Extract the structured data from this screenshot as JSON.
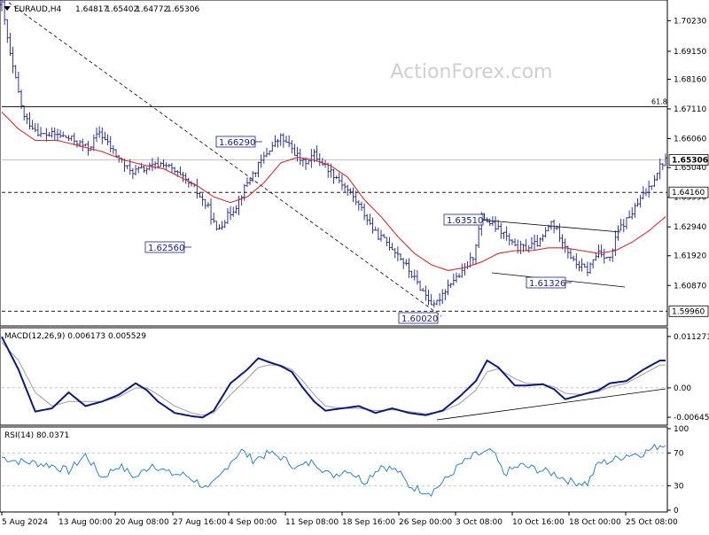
{
  "chart_data": [
    {
      "type": "candlestick",
      "header": {
        "symbol": "EURAUD,H4",
        "open": "1.64817",
        "high": "1.65402",
        "low": "1.64772",
        "close": "1.65306"
      },
      "watermark": "ActionForex.com",
      "price_axis": {
        "ylim": [
          1.595,
          1.709
        ],
        "ticks": [
          "1.70230",
          "1.69150",
          "1.68160",
          "1.67110",
          "1.66060",
          "1.65040",
          "1.63990",
          "1.62940",
          "1.61920",
          "1.60870"
        ],
        "current_price": "1.65306",
        "key_levels": [
          "1.64160",
          "1.59960"
        ],
        "fib_level": {
          "label": "61.8",
          "value": 1.6719
        }
      },
      "time_axis": [
        "5 Aug 2024",
        "13 Aug 00:00",
        "20 Aug 08:00",
        "27 Aug 16:00",
        "4 Sep 00:00",
        "11 Sep 08:00",
        "18 Sep 16:00",
        "26 Sep 00:00",
        "3 Oct 08:00",
        "10 Oct 16:00",
        "18 Oct 00:00",
        "25 Oct 08:00"
      ],
      "annotations": [
        {
          "label": "1.66290",
          "value": 1.6629
        },
        {
          "label": "1.62560",
          "value": 1.6256
        },
        {
          "label": "1.63510",
          "value": 1.6351
        },
        {
          "label": "1.61326",
          "value": 1.6133
        },
        {
          "label": "1.60020",
          "value": 1.6002
        }
      ],
      "close_path": [
        [
          0,
          1.708
        ],
        [
          3,
          1.69
        ],
        [
          8,
          1.668
        ],
        [
          14,
          1.662
        ],
        [
          20,
          1.662
        ],
        [
          26,
          1.66
        ],
        [
          31,
          1.657
        ],
        [
          35,
          1.663
        ],
        [
          40,
          1.656
        ],
        [
          46,
          1.649
        ],
        [
          52,
          1.65
        ],
        [
          58,
          1.652
        ],
        [
          63,
          1.648
        ],
        [
          69,
          1.643
        ],
        [
          74,
          1.636
        ],
        [
          77,
          1.628
        ],
        [
          80,
          1.632
        ],
        [
          84,
          1.637
        ],
        [
          88,
          1.645
        ],
        [
          92,
          1.651
        ],
        [
          96,
          1.657
        ],
        [
          100,
          1.661
        ],
        [
          104,
          1.657
        ],
        [
          108,
          1.652
        ],
        [
          112,
          1.655
        ],
        [
          116,
          1.651
        ],
        [
          121,
          1.646
        ],
        [
          126,
          1.64
        ],
        [
          130,
          1.634
        ],
        [
          134,
          1.627
        ],
        [
          138,
          1.624
        ],
        [
          142,
          1.62
        ],
        [
          146,
          1.614
        ],
        [
          150,
          1.608
        ],
        [
          153,
          1.604
        ],
        [
          155,
          1.601
        ],
        [
          158,
          1.606
        ],
        [
          161,
          1.61
        ],
        [
          165,
          1.613
        ],
        [
          169,
          1.619
        ],
        [
          172,
          1.633
        ],
        [
          176,
          1.63
        ],
        [
          180,
          1.627
        ],
        [
          184,
          1.622
        ],
        [
          188,
          1.622
        ],
        [
          193,
          1.624
        ],
        [
          197,
          1.631
        ],
        [
          201,
          1.625
        ],
        [
          205,
          1.617
        ],
        [
          210,
          1.614
        ],
        [
          214,
          1.621
        ],
        [
          218,
          1.618
        ],
        [
          221,
          1.628
        ],
        [
          225,
          1.633
        ],
        [
          229,
          1.639
        ],
        [
          233,
          1.645
        ],
        [
          236,
          1.651
        ],
        [
          238,
          1.653
        ]
      ],
      "ma_path": [
        [
          0,
          1.67
        ],
        [
          6,
          1.664
        ],
        [
          12,
          1.66
        ],
        [
          20,
          1.66
        ],
        [
          28,
          1.658
        ],
        [
          36,
          1.656
        ],
        [
          44,
          1.653
        ],
        [
          52,
          1.651
        ],
        [
          58,
          1.65
        ],
        [
          64,
          1.647
        ],
        [
          70,
          1.644
        ],
        [
          76,
          1.64
        ],
        [
          82,
          1.638
        ],
        [
          88,
          1.64
        ],
        [
          94,
          1.645
        ],
        [
          100,
          1.652
        ],
        [
          106,
          1.654
        ],
        [
          112,
          1.653
        ],
        [
          118,
          1.651
        ],
        [
          124,
          1.647
        ],
        [
          130,
          1.639
        ],
        [
          136,
          1.633
        ],
        [
          142,
          1.626
        ],
        [
          148,
          1.62
        ],
        [
          154,
          1.616
        ],
        [
          160,
          1.614
        ],
        [
          166,
          1.615
        ],
        [
          172,
          1.617
        ],
        [
          178,
          1.62
        ],
        [
          184,
          1.621
        ],
        [
          190,
          1.621
        ],
        [
          196,
          1.622
        ],
        [
          202,
          1.622
        ],
        [
          208,
          1.621
        ],
        [
          214,
          1.62
        ],
        [
          220,
          1.621
        ],
        [
          226,
          1.624
        ],
        [
          232,
          1.628
        ],
        [
          238,
          1.633
        ]
      ]
    },
    {
      "type": "line",
      "label": "MACD(12,26,9) 0.006173 0.005529",
      "ylim": [
        -0.0078,
        0.0128
      ],
      "ticks": [
        "0.011271",
        "0.00",
        "-0.006453"
      ],
      "zero_label": "0.00",
      "macd": [
        [
          0,
          0.0112
        ],
        [
          6,
          0.004
        ],
        [
          12,
          -0.0052
        ],
        [
          18,
          -0.0045
        ],
        [
          24,
          -0.001
        ],
        [
          30,
          -0.004
        ],
        [
          36,
          -0.003
        ],
        [
          42,
          -0.0015
        ],
        [
          48,
          0.001
        ],
        [
          52,
          -0.0005
        ],
        [
          56,
          -0.003
        ],
        [
          62,
          -0.0055
        ],
        [
          68,
          -0.0062
        ],
        [
          72,
          -0.0065
        ],
        [
          76,
          -0.005
        ],
        [
          82,
          0.001
        ],
        [
          88,
          0.004
        ],
        [
          92,
          0.0065
        ],
        [
          96,
          0.0056
        ],
        [
          100,
          0.0048
        ],
        [
          104,
          0.0035
        ],
        [
          108,
          0.0
        ],
        [
          112,
          -0.003
        ],
        [
          116,
          -0.005
        ],
        [
          122,
          -0.0045
        ],
        [
          128,
          -0.004
        ],
        [
          134,
          -0.0055
        ],
        [
          140,
          -0.0045
        ],
        [
          146,
          -0.0055
        ],
        [
          152,
          -0.006
        ],
        [
          158,
          -0.005
        ],
        [
          164,
          -0.002
        ],
        [
          170,
          0.0015
        ],
        [
          174,
          0.006
        ],
        [
          178,
          0.0045
        ],
        [
          184,
          0.0005
        ],
        [
          188,
          0.0005
        ],
        [
          194,
          0.0008
        ],
        [
          198,
          -0.0003
        ],
        [
          202,
          -0.0025
        ],
        [
          208,
          -0.0015
        ],
        [
          214,
          -0.0005
        ],
        [
          218,
          0.001
        ],
        [
          224,
          0.0015
        ],
        [
          230,
          0.004
        ],
        [
          236,
          0.006
        ]
      ],
      "signal": [
        [
          0,
          0.01
        ],
        [
          6,
          0.006
        ],
        [
          12,
          -0.001
        ],
        [
          18,
          -0.004
        ],
        [
          24,
          -0.003
        ],
        [
          30,
          -0.003
        ],
        [
          36,
          -0.003
        ],
        [
          42,
          -0.002
        ],
        [
          48,
          0.0
        ],
        [
          52,
          0.0
        ],
        [
          56,
          -0.0015
        ],
        [
          62,
          -0.004
        ],
        [
          68,
          -0.0055
        ],
        [
          72,
          -0.006
        ],
        [
          76,
          -0.0055
        ],
        [
          82,
          -0.0015
        ],
        [
          88,
          0.002
        ],
        [
          92,
          0.0045
        ],
        [
          96,
          0.005
        ],
        [
          100,
          0.005
        ],
        [
          104,
          0.004
        ],
        [
          108,
          0.0015
        ],
        [
          112,
          -0.0015
        ],
        [
          116,
          -0.004
        ],
        [
          122,
          -0.0045
        ],
        [
          128,
          -0.0045
        ],
        [
          134,
          -0.005
        ],
        [
          140,
          -0.0048
        ],
        [
          146,
          -0.0052
        ],
        [
          152,
          -0.0057
        ],
        [
          158,
          -0.0052
        ],
        [
          164,
          -0.0035
        ],
        [
          170,
          -0.0005
        ],
        [
          174,
          0.0035
        ],
        [
          178,
          0.0042
        ],
        [
          184,
          0.002
        ],
        [
          188,
          0.001
        ],
        [
          194,
          0.0008
        ],
        [
          198,
          0.0002
        ],
        [
          202,
          -0.0012
        ],
        [
          208,
          -0.0015
        ],
        [
          214,
          -0.0008
        ],
        [
          218,
          0.0002
        ],
        [
          224,
          0.001
        ],
        [
          230,
          0.003
        ],
        [
          236,
          0.005
        ]
      ]
    },
    {
      "type": "line",
      "label": "RSI(14) 80.0371",
      "ylim": [
        0,
        100
      ],
      "ticks": [
        "100",
        "70",
        "30",
        "0"
      ],
      "levels": [
        70,
        30
      ],
      "rsi": [
        [
          0,
          65
        ],
        [
          6,
          60
        ],
        [
          12,
          58
        ],
        [
          18,
          55
        ],
        [
          24,
          48
        ],
        [
          30,
          68
        ],
        [
          36,
          40
        ],
        [
          42,
          55
        ],
        [
          48,
          40
        ],
        [
          54,
          57
        ],
        [
          60,
          45
        ],
        [
          66,
          43
        ],
        [
          70,
          35
        ],
        [
          74,
          25
        ],
        [
          78,
          40
        ],
        [
          82,
          60
        ],
        [
          86,
          73
        ],
        [
          90,
          62
        ],
        [
          96,
          70
        ],
        [
          100,
          65
        ],
        [
          106,
          52
        ],
        [
          112,
          60
        ],
        [
          118,
          42
        ],
        [
          124,
          50
        ],
        [
          130,
          35
        ],
        [
          136,
          55
        ],
        [
          142,
          48
        ],
        [
          146,
          30
        ],
        [
          150,
          25
        ],
        [
          154,
          22
        ],
        [
          160,
          40
        ],
        [
          164,
          55
        ],
        [
          170,
          68
        ],
        [
          176,
          72
        ],
        [
          180,
          45
        ],
        [
          186,
          55
        ],
        [
          192,
          50
        ],
        [
          198,
          45
        ],
        [
          204,
          35
        ],
        [
          210,
          33
        ],
        [
          214,
          58
        ],
        [
          218,
          60
        ],
        [
          224,
          68
        ],
        [
          230,
          70
        ],
        [
          236,
          80
        ]
      ]
    }
  ]
}
